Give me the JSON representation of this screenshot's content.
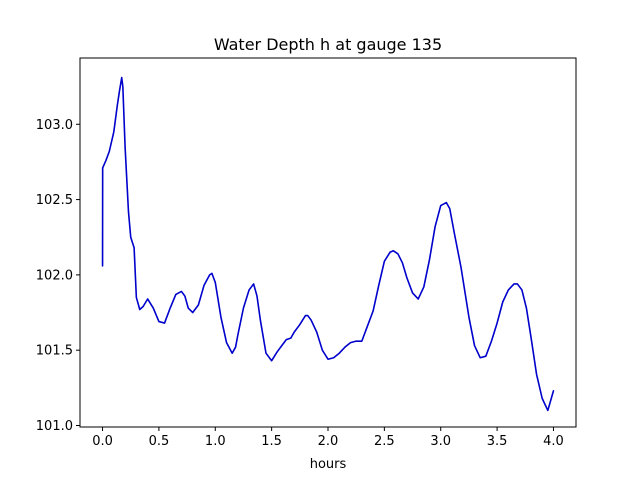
{
  "chart_data": {
    "type": "line",
    "title": "Water Depth h at gauge 135",
    "xlabel": "hours",
    "ylabel": "",
    "xlim": [
      -0.2,
      4.2
    ],
    "ylim": [
      100.99,
      103.44
    ],
    "xticks": [
      0.0,
      0.5,
      1.0,
      1.5,
      2.0,
      2.5,
      3.0,
      3.5,
      4.0
    ],
    "xtick_labels": [
      "0.0",
      "0.5",
      "1.0",
      "1.5",
      "2.0",
      "2.5",
      "3.0",
      "3.5",
      "4.0"
    ],
    "yticks": [
      101.0,
      101.5,
      102.0,
      102.5,
      103.0
    ],
    "ytick_labels": [
      "101.0",
      "101.5",
      "102.0",
      "102.5",
      "103.0"
    ],
    "grid": false,
    "series": [
      {
        "color": "#0000cc",
        "x": [
          0.0,
          0.001,
          0.03,
          0.06,
          0.1,
          0.13,
          0.15,
          0.17,
          0.18,
          0.2,
          0.23,
          0.25,
          0.28,
          0.3,
          0.33,
          0.36,
          0.4,
          0.45,
          0.5,
          0.55,
          0.6,
          0.65,
          0.7,
          0.73,
          0.76,
          0.8,
          0.85,
          0.9,
          0.95,
          0.97,
          1.0,
          1.05,
          1.1,
          1.15,
          1.18,
          1.2,
          1.25,
          1.3,
          1.34,
          1.37,
          1.4,
          1.45,
          1.5,
          1.55,
          1.6,
          1.63,
          1.67,
          1.7,
          1.75,
          1.8,
          1.82,
          1.85,
          1.9,
          1.95,
          2.0,
          2.05,
          2.1,
          2.15,
          2.2,
          2.25,
          2.3,
          2.35,
          2.4,
          2.45,
          2.5,
          2.55,
          2.58,
          2.62,
          2.66,
          2.7,
          2.75,
          2.8,
          2.85,
          2.9,
          2.95,
          3.0,
          3.05,
          3.08,
          3.12,
          3.18,
          3.25,
          3.3,
          3.35,
          3.4,
          3.45,
          3.5,
          3.55,
          3.6,
          3.65,
          3.68,
          3.72,
          3.76,
          3.8,
          3.85,
          3.9,
          3.95,
          4.0
        ],
        "y": [
          102.06,
          102.71,
          102.76,
          102.82,
          102.95,
          103.12,
          103.22,
          103.31,
          103.25,
          102.85,
          102.42,
          102.25,
          102.18,
          101.85,
          101.77,
          101.79,
          101.84,
          101.78,
          101.69,
          101.68,
          101.78,
          101.87,
          101.89,
          101.86,
          101.78,
          101.75,
          101.8,
          101.93,
          102.0,
          102.01,
          101.95,
          101.72,
          101.55,
          101.48,
          101.52,
          101.6,
          101.78,
          101.9,
          101.94,
          101.86,
          101.7,
          101.48,
          101.43,
          101.49,
          101.54,
          101.57,
          101.58,
          101.62,
          101.67,
          101.73,
          101.73,
          101.7,
          101.62,
          101.5,
          101.44,
          101.45,
          101.48,
          101.52,
          101.55,
          101.56,
          101.56,
          101.66,
          101.76,
          101.93,
          102.09,
          102.15,
          102.16,
          102.14,
          102.08,
          101.98,
          101.88,
          101.84,
          101.92,
          102.1,
          102.32,
          102.46,
          102.48,
          102.44,
          102.28,
          102.05,
          101.72,
          101.53,
          101.45,
          101.46,
          101.56,
          101.68,
          101.82,
          101.9,
          101.94,
          101.94,
          101.9,
          101.78,
          101.59,
          101.34,
          101.18,
          101.1,
          101.23
        ]
      }
    ]
  }
}
